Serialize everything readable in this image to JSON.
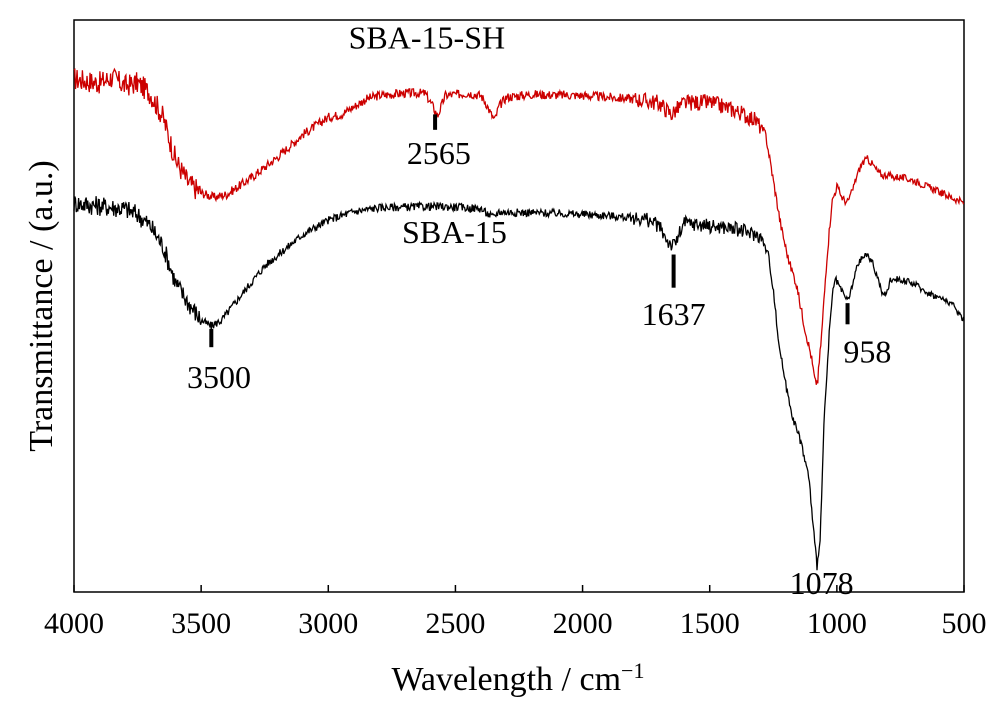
{
  "chart_data": {
    "type": "line",
    "title": "",
    "xlabel": "Wavelength / cm",
    "xlabel_sup": "−1",
    "ylabel": "Transmittance / (a.u.)",
    "xlim": [
      4000,
      500
    ],
    "x_reversed": true,
    "ylim": [
      0,
      1
    ],
    "y_ticks_shown": false,
    "grid": false,
    "legend": "none",
    "x_ticks": [
      4000,
      3500,
      3000,
      2500,
      2000,
      1500,
      1000,
      500
    ],
    "x_tick_labels": [
      "4000",
      "3500",
      "3000",
      "2500",
      "2000",
      "1500",
      "1000",
      "500"
    ],
    "series": [
      {
        "name": "SBA-15-SH",
        "color": "#cc0000",
        "noise": 0.008,
        "points": [
          [
            4000,
            0.897
          ],
          [
            3900,
            0.89
          ],
          [
            3850,
            0.9
          ],
          [
            3800,
            0.885
          ],
          [
            3750,
            0.89
          ],
          [
            3700,
            0.872
          ],
          [
            3650,
            0.83
          ],
          [
            3600,
            0.755
          ],
          [
            3550,
            0.715
          ],
          [
            3500,
            0.698
          ],
          [
            3450,
            0.69
          ],
          [
            3400,
            0.695
          ],
          [
            3300,
            0.725
          ],
          [
            3200,
            0.76
          ],
          [
            3100,
            0.8
          ],
          [
            3000,
            0.83
          ],
          [
            2950,
            0.835
          ],
          [
            2900,
            0.848
          ],
          [
            2850,
            0.862
          ],
          [
            2800,
            0.868
          ],
          [
            2700,
            0.872
          ],
          [
            2650,
            0.872
          ],
          [
            2620,
            0.872
          ],
          [
            2590,
            0.85
          ],
          [
            2570,
            0.832
          ],
          [
            2555,
            0.85
          ],
          [
            2540,
            0.868
          ],
          [
            2450,
            0.872
          ],
          [
            2400,
            0.868
          ],
          [
            2380,
            0.855
          ],
          [
            2360,
            0.835
          ],
          [
            2345,
            0.825
          ],
          [
            2330,
            0.848
          ],
          [
            2300,
            0.865
          ],
          [
            2200,
            0.87
          ],
          [
            2000,
            0.868
          ],
          [
            1800,
            0.862
          ],
          [
            1700,
            0.855
          ],
          [
            1650,
            0.835
          ],
          [
            1640,
            0.84
          ],
          [
            1600,
            0.855
          ],
          [
            1500,
            0.856
          ],
          [
            1400,
            0.842
          ],
          [
            1320,
            0.825
          ],
          [
            1280,
            0.8
          ],
          [
            1250,
            0.72
          ],
          [
            1220,
            0.64
          ],
          [
            1190,
            0.58
          ],
          [
            1160,
            0.54
          ],
          [
            1130,
            0.47
          ],
          [
            1100,
            0.41
          ],
          [
            1085,
            0.365
          ],
          [
            1075,
            0.37
          ],
          [
            1060,
            0.45
          ],
          [
            1040,
            0.58
          ],
          [
            1020,
            0.68
          ],
          [
            1000,
            0.71
          ],
          [
            980,
            0.69
          ],
          [
            960,
            0.68
          ],
          [
            940,
            0.7
          ],
          [
            920,
            0.73
          ],
          [
            900,
            0.75
          ],
          [
            880,
            0.757
          ],
          [
            860,
            0.748
          ],
          [
            840,
            0.735
          ],
          [
            820,
            0.728
          ],
          [
            800,
            0.73
          ],
          [
            780,
            0.725
          ],
          [
            760,
            0.726
          ],
          [
            720,
            0.722
          ],
          [
            700,
            0.72
          ],
          [
            650,
            0.71
          ],
          [
            600,
            0.7
          ],
          [
            550,
            0.69
          ],
          [
            500,
            0.68
          ]
        ]
      },
      {
        "name": "SBA-15",
        "color": "#000000",
        "noise": 0.007,
        "points": [
          [
            4000,
            0.68
          ],
          [
            3900,
            0.675
          ],
          [
            3800,
            0.67
          ],
          [
            3750,
            0.66
          ],
          [
            3700,
            0.64
          ],
          [
            3650,
            0.605
          ],
          [
            3600,
            0.54
          ],
          [
            3550,
            0.505
          ],
          [
            3500,
            0.475
          ],
          [
            3460,
            0.465
          ],
          [
            3420,
            0.475
          ],
          [
            3350,
            0.515
          ],
          [
            3250,
            0.57
          ],
          [
            3100,
            0.625
          ],
          [
            3000,
            0.65
          ],
          [
            2900,
            0.665
          ],
          [
            2800,
            0.672
          ],
          [
            2600,
            0.674
          ],
          [
            2500,
            0.673
          ],
          [
            2400,
            0.67
          ],
          [
            2370,
            0.66
          ],
          [
            2350,
            0.655
          ],
          [
            2330,
            0.665
          ],
          [
            2300,
            0.664
          ],
          [
            2100,
            0.662
          ],
          [
            1900,
            0.658
          ],
          [
            1750,
            0.652
          ],
          [
            1700,
            0.64
          ],
          [
            1660,
            0.61
          ],
          [
            1640,
            0.605
          ],
          [
            1620,
            0.625
          ],
          [
            1600,
            0.645
          ],
          [
            1500,
            0.64
          ],
          [
            1400,
            0.635
          ],
          [
            1300,
            0.622
          ],
          [
            1270,
            0.59
          ],
          [
            1250,
            0.53
          ],
          [
            1230,
            0.44
          ],
          [
            1200,
            0.36
          ],
          [
            1170,
            0.3
          ],
          [
            1140,
            0.26
          ],
          [
            1110,
            0.2
          ],
          [
            1090,
            0.1
          ],
          [
            1078,
            0.045
          ],
          [
            1065,
            0.1
          ],
          [
            1050,
            0.3
          ],
          [
            1030,
            0.45
          ],
          [
            1015,
            0.53
          ],
          [
            1005,
            0.545
          ],
          [
            990,
            0.535
          ],
          [
            975,
            0.52
          ],
          [
            958,
            0.51
          ],
          [
            945,
            0.525
          ],
          [
            920,
            0.57
          ],
          [
            900,
            0.585
          ],
          [
            880,
            0.59
          ],
          [
            860,
            0.575
          ],
          [
            840,
            0.55
          ],
          [
            820,
            0.52
          ],
          [
            805,
            0.52
          ],
          [
            790,
            0.545
          ],
          [
            770,
            0.548
          ],
          [
            750,
            0.546
          ],
          [
            700,
            0.54
          ],
          [
            650,
            0.525
          ],
          [
            600,
            0.515
          ],
          [
            550,
            0.505
          ],
          [
            500,
            0.475
          ]
        ]
      }
    ],
    "series_labels": [
      {
        "text": "SBA-15-SH",
        "x": 2920,
        "y": 0.95
      },
      {
        "text": "SBA-15",
        "x": 2710,
        "y": 0.61
      }
    ],
    "peak_annotations": [
      {
        "label": "2565",
        "x": 2580,
        "series": "SBA-15-SH",
        "tick_from": 0.835,
        "tick_to": 0.808,
        "label_x": 2565,
        "label_y": 0.752
      },
      {
        "label": "3500",
        "x": 3460,
        "series": "SBA-15",
        "tick_from": 0.46,
        "tick_to": 0.428,
        "label_x": 3430,
        "label_y": 0.36
      },
      {
        "label": "1637",
        "x": 1642,
        "series": "SBA-15",
        "tick_from": 0.59,
        "tick_to": 0.532,
        "label_x": 1642,
        "label_y": 0.47
      },
      {
        "label": "958",
        "x": 958,
        "series": "SBA-15",
        "tick_from": 0.505,
        "tick_to": 0.468,
        "label_x": 880,
        "label_y": 0.405
      },
      {
        "label": "1078",
        "x": 1078,
        "series": "SBA-15",
        "tick_from": null,
        "tick_to": null,
        "label_x": 1060,
        "label_y": 0.0
      }
    ]
  }
}
